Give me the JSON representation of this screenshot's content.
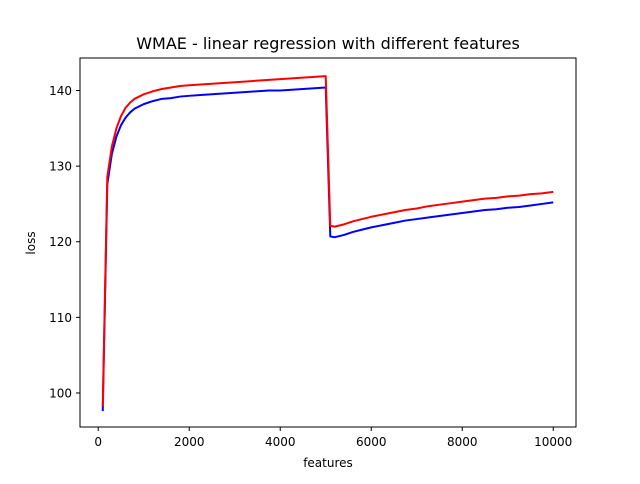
{
  "chart_data": {
    "type": "line",
    "title": "WMAE - linear regression with different features",
    "xlabel": "features",
    "ylabel": "loss",
    "xlim": [
      -400,
      10500
    ],
    "ylim": [
      95.5,
      144.3
    ],
    "xticks": [
      0,
      2000,
      4000,
      6000,
      8000,
      10000
    ],
    "xtick_labels": [
      "0",
      "2000",
      "4000",
      "6000",
      "8000",
      "10000"
    ],
    "yticks": [
      100,
      110,
      120,
      130,
      140
    ],
    "ytick_labels": [
      "100",
      "110",
      "120",
      "130",
      "140"
    ],
    "grid": false,
    "legend": false,
    "series": [
      {
        "color": "#0000ff",
        "x": [
          100,
          200,
          300,
          400,
          500,
          600,
          700,
          800,
          900,
          1000,
          1200,
          1400,
          1600,
          1800,
          2000,
          2250,
          2500,
          2750,
          3000,
          3250,
          3500,
          3750,
          4000,
          4250,
          4500,
          4750,
          5000,
          5100,
          5200,
          5400,
          5600,
          5800,
          6000,
          6250,
          6500,
          6750,
          7000,
          7250,
          7500,
          7750,
          8000,
          8250,
          8500,
          8750,
          9000,
          9250,
          9500,
          9750,
          10000
        ],
        "values": [
          97.6,
          127.6,
          131.6,
          133.9,
          135.4,
          136.4,
          137.1,
          137.6,
          137.9,
          138.2,
          138.6,
          138.9,
          139.0,
          139.2,
          139.3,
          139.4,
          139.5,
          139.6,
          139.7,
          139.8,
          139.9,
          140.0,
          140.0,
          140.1,
          140.2,
          140.3,
          140.4,
          120.7,
          120.6,
          120.9,
          121.3,
          121.6,
          121.9,
          122.2,
          122.5,
          122.8,
          123.0,
          123.2,
          123.4,
          123.6,
          123.8,
          124.0,
          124.2,
          124.3,
          124.5,
          124.6,
          124.8,
          125.0,
          125.2
        ]
      },
      {
        "color": "#ff0000",
        "x": [
          100,
          200,
          300,
          400,
          500,
          600,
          700,
          800,
          900,
          1000,
          1200,
          1400,
          1600,
          1800,
          2000,
          2250,
          2500,
          2750,
          3000,
          3250,
          3500,
          3750,
          4000,
          4250,
          4500,
          4750,
          5000,
          5100,
          5200,
          5400,
          5600,
          5800,
          6000,
          6250,
          6500,
          6750,
          7000,
          7250,
          7500,
          7750,
          8000,
          8250,
          8500,
          8750,
          9000,
          9250,
          9500,
          9750,
          10000
        ],
        "values": [
          98.2,
          128.6,
          132.6,
          135.0,
          136.6,
          137.7,
          138.4,
          138.9,
          139.2,
          139.5,
          139.9,
          140.2,
          140.4,
          140.6,
          140.7,
          140.8,
          140.9,
          141.0,
          141.1,
          141.2,
          141.3,
          141.4,
          141.5,
          141.6,
          141.7,
          141.8,
          141.9,
          122.1,
          122.0,
          122.3,
          122.7,
          123.0,
          123.3,
          123.6,
          123.9,
          124.2,
          124.4,
          124.7,
          124.9,
          125.1,
          125.3,
          125.5,
          125.7,
          125.8,
          126.0,
          126.1,
          126.3,
          126.4,
          126.6
        ]
      }
    ]
  }
}
